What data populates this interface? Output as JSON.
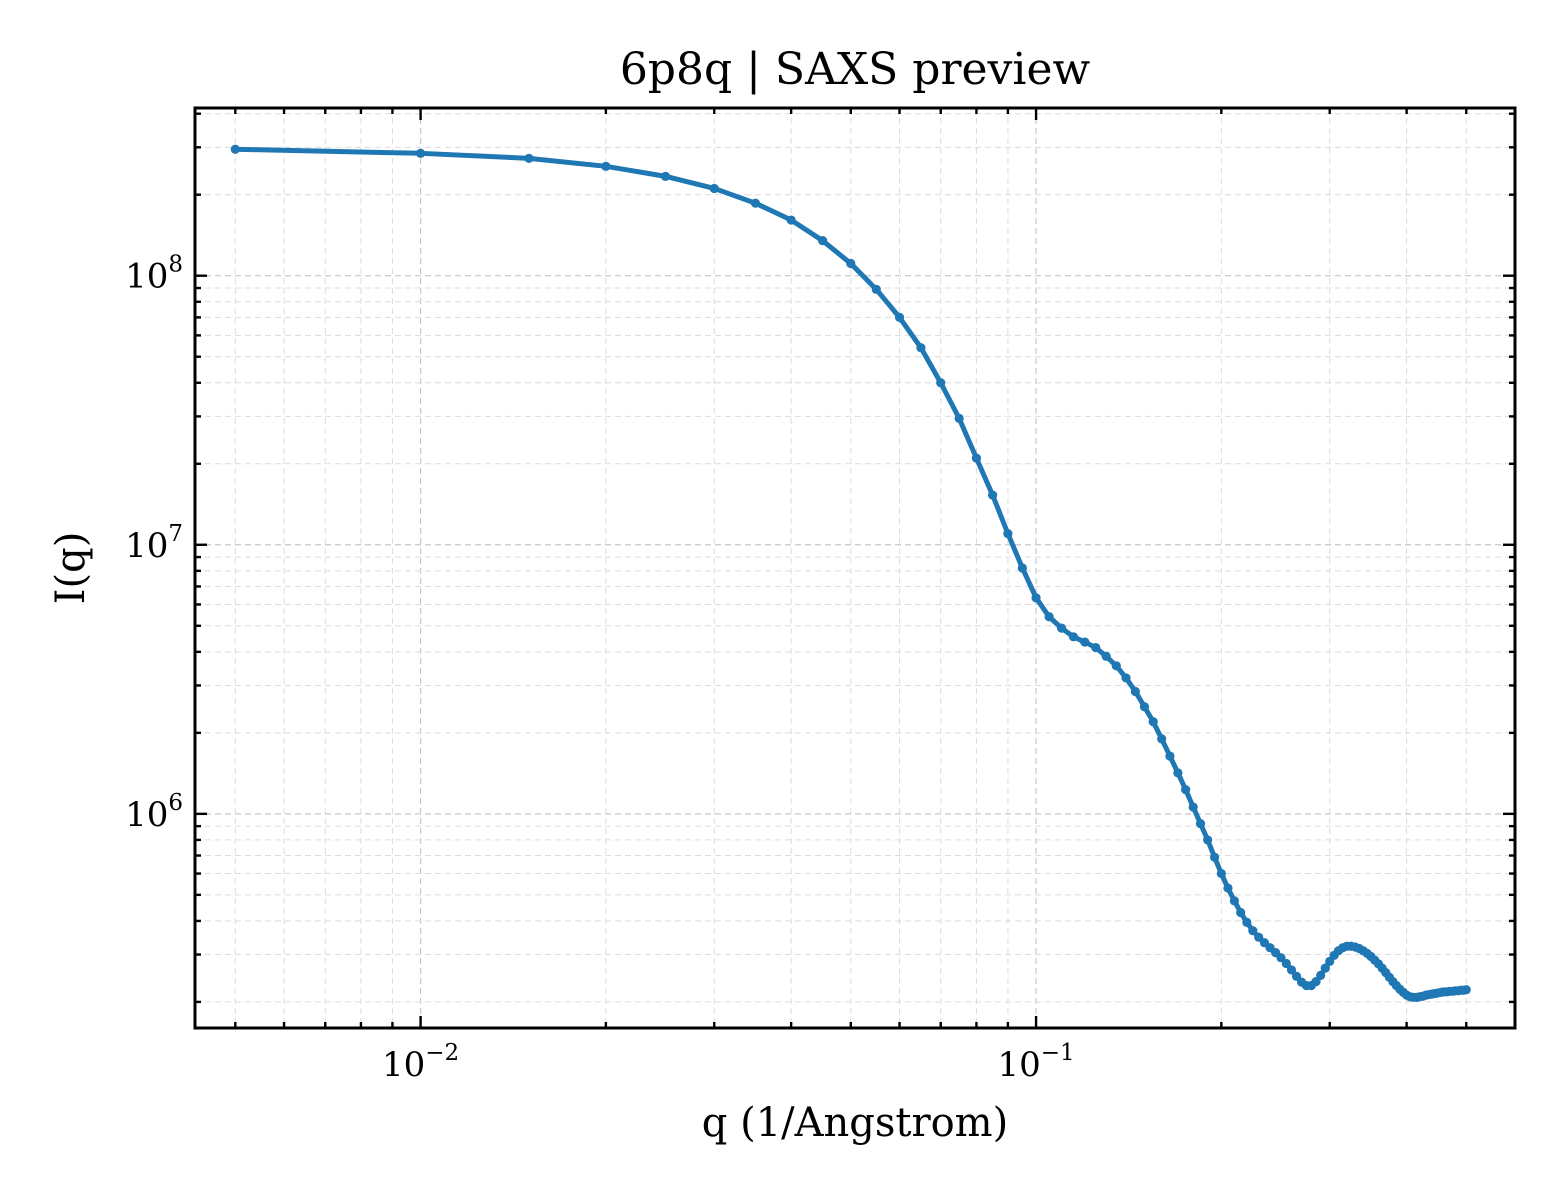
{
  "chart_data": {
    "type": "line",
    "title": "6p8q | SAXS preview",
    "xlabel": "q (1/Angstrom)",
    "ylabel": "I(q)",
    "xscale": "log",
    "yscale": "log",
    "xlim": [
      0.0043,
      0.6
    ],
    "ylim": [
      160000,
      420000000
    ],
    "x_ticks": [
      {
        "value": 0.01,
        "base": "10",
        "exp": "−2"
      },
      {
        "value": 0.1,
        "base": "10",
        "exp": "−1"
      }
    ],
    "y_ticks": [
      {
        "value": 1000000,
        "base": "10",
        "exp": "6"
      },
      {
        "value": 10000000,
        "base": "10",
        "exp": "7"
      },
      {
        "value": 100000000,
        "base": "10",
        "exp": "8"
      }
    ],
    "grid": true,
    "legend": "none",
    "color": "#1f77b4",
    "series": [
      {
        "x": [
          0.005,
          0.01,
          0.015,
          0.02,
          0.025,
          0.03,
          0.035,
          0.04,
          0.045,
          0.05,
          0.055,
          0.06,
          0.065,
          0.07,
          0.075,
          0.08,
          0.085,
          0.09,
          0.095,
          0.1,
          0.105,
          0.11,
          0.115,
          0.12,
          0.125,
          0.13,
          0.135,
          0.14,
          0.145,
          0.15,
          0.155,
          0.16,
          0.165,
          0.17,
          0.175,
          0.18,
          0.185,
          0.19,
          0.195,
          0.2,
          0.205,
          0.21,
          0.215,
          0.22,
          0.225,
          0.23,
          0.235,
          0.24,
          0.245,
          0.25,
          0.255,
          0.26,
          0.265,
          0.27,
          0.275,
          0.28,
          0.285,
          0.29,
          0.295,
          0.3,
          0.305,
          0.31,
          0.315,
          0.32,
          0.325,
          0.33,
          0.335,
          0.34,
          0.345,
          0.35,
          0.355,
          0.36,
          0.365,
          0.37,
          0.375,
          0.38,
          0.385,
          0.39,
          0.395,
          0.4,
          0.405,
          0.41,
          0.415,
          0.42,
          0.425,
          0.43,
          0.435,
          0.44,
          0.445,
          0.45,
          0.455,
          0.46,
          0.465,
          0.47,
          0.475,
          0.48,
          0.485,
          0.49,
          0.495,
          0.5
        ],
        "y": [
          295000000,
          285000000,
          273000000,
          255000000,
          234000000,
          211000000,
          186000000,
          161000000,
          135000000,
          111000000,
          89000000,
          70000000,
          54000000,
          40000000,
          29500000,
          21000000,
          15300000,
          11000000,
          8200000,
          6350000,
          5400000,
          4900000,
          4550000,
          4350000,
          4150000,
          3850000,
          3550000,
          3200000,
          2850000,
          2500000,
          2200000,
          1900000,
          1640000,
          1420000,
          1230000,
          1060000,
          920000,
          800000,
          690000,
          600000,
          530000,
          475000,
          430000,
          395000,
          368000,
          348000,
          332000,
          318000,
          305000,
          292000,
          278000,
          263000,
          249000,
          237000,
          230000,
          230000,
          238000,
          251000,
          267000,
          283000,
          298000,
          310000,
          318000,
          322000,
          322000,
          320000,
          316000,
          310000,
          303000,
          295000,
          286000,
          277000,
          267000,
          257000,
          247000,
          238000,
          230000,
          223000,
          217000,
          212000,
          209000,
          208000,
          208000,
          209000,
          210000,
          212000,
          213000,
          214000,
          215000,
          216000,
          217000,
          218000,
          218000,
          219000,
          219000,
          220000,
          220000,
          221000,
          221000,
          222000
        ]
      }
    ]
  }
}
